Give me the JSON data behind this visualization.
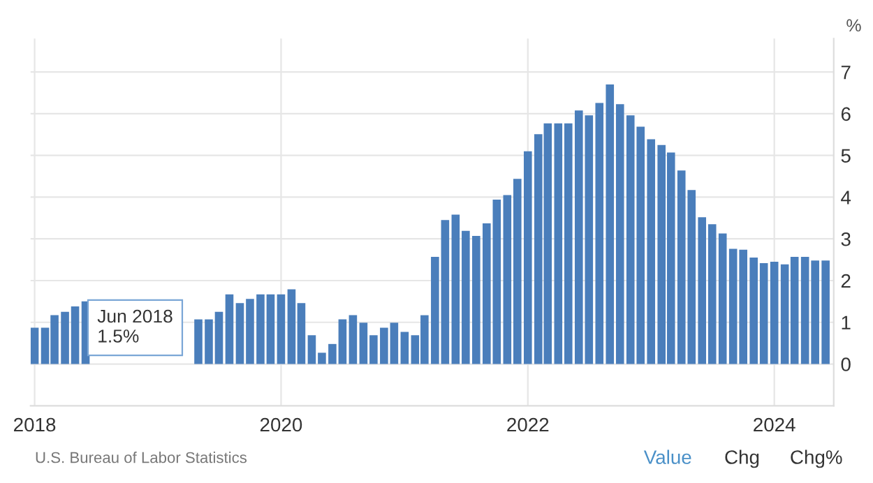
{
  "chart_data": {
    "type": "bar",
    "ylabel": "%",
    "x": [
      "2018-01",
      "2018-02",
      "2018-03",
      "2018-04",
      "2018-05",
      "2018-06",
      "2018-07",
      "2018-08",
      "2018-09",
      "2018-10",
      "2018-11",
      "2018-12",
      "2019-01",
      "2019-02",
      "2019-03",
      "2019-04",
      "2019-05",
      "2019-06",
      "2019-07",
      "2019-08",
      "2019-09",
      "2019-10",
      "2019-11",
      "2019-12",
      "2020-01",
      "2020-02",
      "2020-03",
      "2020-04",
      "2020-05",
      "2020-06",
      "2020-07",
      "2020-08",
      "2020-09",
      "2020-10",
      "2020-11",
      "2020-12",
      "2021-01",
      "2021-02",
      "2021-03",
      "2021-04",
      "2021-05",
      "2021-06",
      "2021-07",
      "2021-08",
      "2021-09",
      "2021-10",
      "2021-11",
      "2021-12",
      "2022-01",
      "2022-02",
      "2022-03",
      "2022-04",
      "2022-05",
      "2022-06",
      "2022-07",
      "2022-08",
      "2022-09",
      "2022-10",
      "2022-11",
      "2022-12",
      "2023-01",
      "2023-02",
      "2023-03",
      "2023-04",
      "2023-05",
      "2023-06",
      "2023-07",
      "2023-08",
      "2023-09",
      "2023-10",
      "2023-11",
      "2023-12",
      "2024-01",
      "2024-02",
      "2024-03",
      "2024-04",
      "2024-05",
      "2024-06"
    ],
    "series": [
      {
        "color": "#4a7ebb",
        "values": [
          0.87,
          0.87,
          1.17,
          1.25,
          1.38,
          1.5,
          null,
          null,
          null,
          null,
          null,
          null,
          null,
          null,
          null,
          null,
          1.07,
          1.07,
          1.25,
          1.67,
          1.46,
          1.56,
          1.67,
          1.67,
          1.67,
          1.79,
          1.46,
          0.69,
          0.27,
          0.48,
          1.07,
          1.17,
          0.99,
          0.69,
          0.87,
          0.99,
          0.77,
          0.69,
          1.17,
          2.57,
          3.45,
          3.58,
          3.19,
          3.07,
          3.37,
          3.94,
          4.05,
          4.44,
          5.1,
          5.51,
          5.77,
          5.77,
          5.77,
          6.08,
          5.96,
          6.26,
          6.7,
          6.23,
          5.96,
          5.69,
          5.39,
          5.25,
          5.07,
          4.64,
          4.17,
          3.52,
          3.35,
          3.13,
          2.76,
          2.74,
          2.55,
          2.42,
          2.45,
          2.39,
          2.57,
          2.57,
          2.48,
          2.48
        ]
      }
    ],
    "xlim": [
      "2017-12-20",
      "2024-06-25"
    ],
    "xticks": [
      "2018",
      "2020",
      "2022",
      "2024"
    ],
    "ylim": [
      -1,
      7.8
    ],
    "yticks": [
      0,
      1,
      2,
      3,
      4,
      5,
      6,
      7
    ],
    "grid": true,
    "annotations": [
      {
        "text": "Jun 2018\n1.5%",
        "x": "2018-06",
        "y": 1.5
      },
      "U.S. Bureau of Labor Statistics",
      "Value",
      "Chg",
      "Chg%"
    ]
  }
}
